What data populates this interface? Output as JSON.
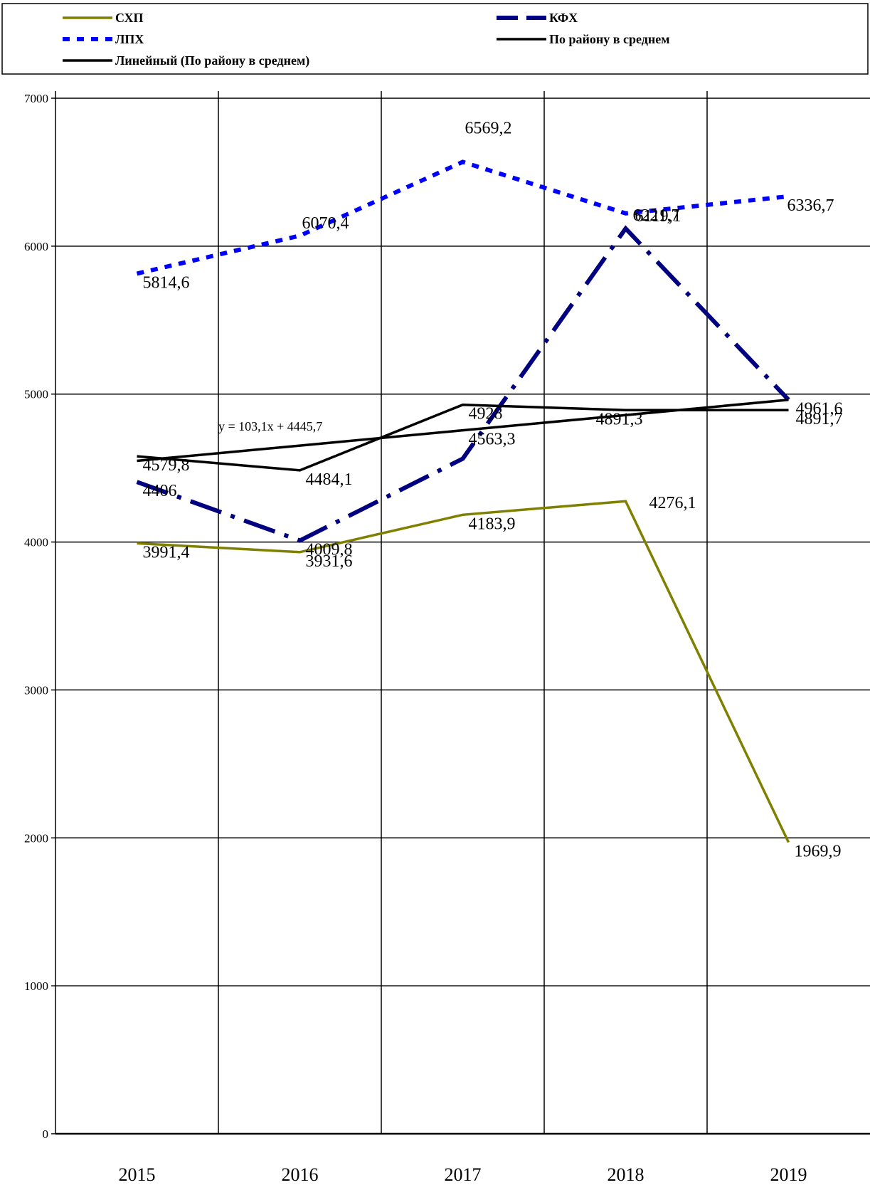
{
  "chart_data": {
    "type": "line",
    "x": [
      "2015",
      "2016",
      "2017",
      "2018",
      "2019"
    ],
    "ylim": [
      0,
      7000
    ],
    "yticks": [
      "0",
      "1000",
      "2000",
      "3000",
      "4000",
      "5000",
      "6000",
      "7000"
    ],
    "grid": true,
    "legend_position": "top",
    "series": [
      {
        "name": "СХП",
        "color": "#808000",
        "style": "solid",
        "values": [
          3991.4,
          3931.6,
          4183.9,
          4276.1,
          1969.9
        ],
        "labels": [
          "3991,4",
          "3931,6",
          "4183,9",
          "4276,1",
          "1969,9"
        ]
      },
      {
        "name": "КФХ",
        "color": "#000080",
        "style": "dashdot",
        "values": [
          4406,
          4009.8,
          4563.3,
          6119.1,
          4961.6
        ],
        "labels": [
          "4406",
          "4009,8",
          "4563,3",
          "6119,1",
          "4961,6"
        ]
      },
      {
        "name": "ЛПХ",
        "color": "#0000ff",
        "style": "dotted",
        "values": [
          5814.6,
          6070.4,
          6569.2,
          6221.7,
          6336.7
        ],
        "labels": [
          "5814,6",
          "6070,4",
          "6569,2",
          "6221,7",
          "6336,7"
        ]
      },
      {
        "name": "По району в среднем",
        "color": "#000000",
        "style": "solid",
        "values": [
          4579.8,
          4484.1,
          4928,
          4891.3,
          4891.7
        ],
        "labels": [
          "4579,8",
          "4484,1",
          "4928",
          "4891,3",
          "4891,7"
        ]
      },
      {
        "name": "Линейный (По району в среднем)",
        "color": "#000000",
        "style": "trend",
        "values": [
          4548.8,
          4651.9,
          4755.0,
          4858.1,
          4961.2
        ],
        "labels": []
      }
    ],
    "trend_equation": "y = 103,1x + 4445,7"
  }
}
